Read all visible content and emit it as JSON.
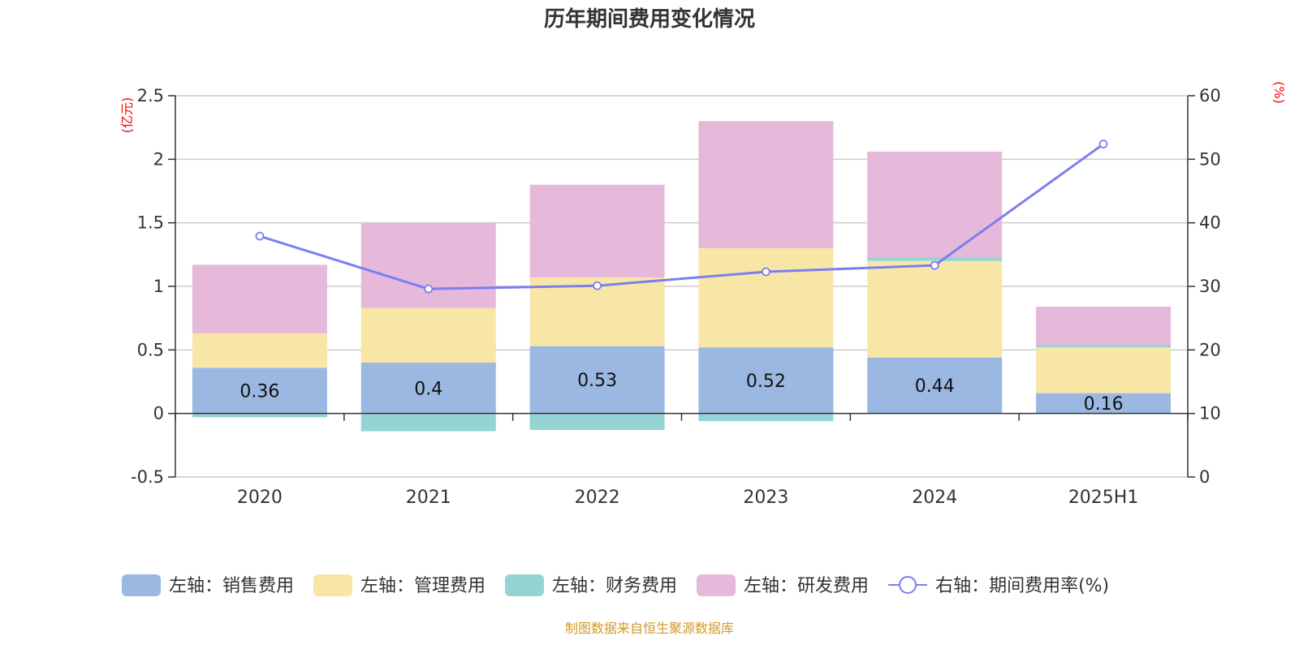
{
  "title": "历年期间费用变化情况",
  "source_text": "制图数据来自恒生聚源数据库",
  "colors": {
    "sales": "#9bb8e2",
    "admin": "#f8e6a6",
    "finance": "#94d4d4",
    "rd": "#e6b8da",
    "rate_line": "#7b7ef0",
    "unit_text": "#ff0000",
    "source_text": "#d19a2a"
  },
  "chart_data": {
    "type": "bar",
    "stacked": true,
    "categories": [
      "2020",
      "2021",
      "2022",
      "2023",
      "2024",
      "2025H1"
    ],
    "series": [
      {
        "name": "左轴：销售费用",
        "key": "sales",
        "axis": "left",
        "values": [
          0.36,
          0.4,
          0.53,
          0.52,
          0.44,
          0.16
        ],
        "show_labels": true
      },
      {
        "name": "左轴：管理费用",
        "key": "admin",
        "axis": "left",
        "values": [
          0.27,
          0.43,
          0.54,
          0.78,
          0.76,
          0.36
        ]
      },
      {
        "name": "左轴：财务费用",
        "key": "finance",
        "axis": "left",
        "values": [
          -0.03,
          -0.14,
          -0.13,
          -0.06,
          0.03,
          0.02
        ]
      },
      {
        "name": "左轴：研发费用",
        "key": "rd",
        "axis": "left",
        "values": [
          0.54,
          0.67,
          0.73,
          1.0,
          0.83,
          0.3
        ]
      },
      {
        "name": "右轴：期间费用率(%)",
        "key": "rate",
        "axis": "right",
        "type": "line",
        "values": [
          37.9,
          29.6,
          30.1,
          32.3,
          33.3,
          52.4
        ]
      }
    ],
    "y_left": {
      "unit": "(亿元)",
      "min": -0.5,
      "max": 2.5,
      "ticks": [
        2.5,
        2,
        1.5,
        1,
        0.5,
        0,
        -0.5
      ],
      "tick_labels": [
        "2.5",
        "2",
        "1.5",
        "1",
        "0.5",
        "0",
        "-0.5"
      ]
    },
    "y_right": {
      "unit": "(%)",
      "min": 0,
      "max": 60,
      "ticks": [
        60,
        50,
        40,
        30,
        20,
        10,
        0
      ],
      "tick_labels": [
        "60",
        "50",
        "40",
        "30",
        "20",
        "10",
        "0"
      ]
    },
    "grid": true,
    "legend_position": "bottom"
  }
}
